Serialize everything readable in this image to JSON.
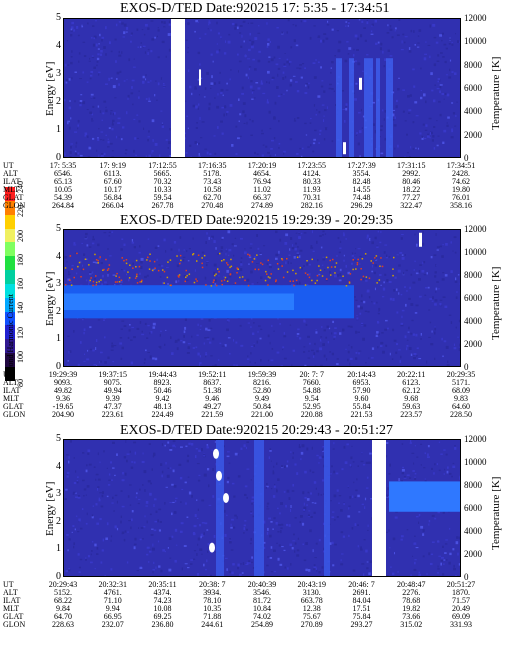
{
  "chart_data": [
    {
      "type": "heatmap",
      "title": "EXOS-D/TED   Date:920215  17: 5:35 - 17:34:51",
      "ylabel": "Energy [eV]",
      "y2label": "Temperature [K]",
      "ylim": [
        0,
        5
      ],
      "y2lim": [
        0,
        12000
      ],
      "yticks": [
        "0",
        "1",
        "2",
        "3",
        "4",
        "5"
      ],
      "y2ticks": [
        "0",
        "2000",
        "4000",
        "6000",
        "8000",
        "10000",
        "12000"
      ],
      "ephemeris": {
        "labels": [
          "UT",
          "ALT",
          "ILAT",
          "MLT",
          "GLAT",
          "GLON"
        ],
        "columns": [
          [
            "17: 5:35",
            "6546.",
            "65.13",
            "10.05",
            "54.39",
            "264.84"
          ],
          [
            "17: 9:19",
            "6113.",
            "67.60",
            "10.17",
            "56.84",
            "266.04"
          ],
          [
            "17:12:55",
            "5665.",
            "70.32",
            "10.33",
            "59.54",
            "267.78"
          ],
          [
            "17:16:35",
            "5178.",
            "73.43",
            "10.58",
            "62.70",
            "270.48"
          ],
          [
            "17:20:19",
            "4654.",
            "76.94",
            "11.02",
            "66.37",
            "274.89"
          ],
          [
            "17:23:55",
            "4124.",
            "80.33",
            "11.93",
            "70.31",
            "282.16"
          ],
          [
            "17:27:39",
            "3554.",
            "82.48",
            "14.55",
            "74.48",
            "296.29"
          ],
          [
            "17:31:15",
            "2992.",
            "80.46",
            "18.22",
            "77.27",
            "322.47"
          ],
          [
            "17:34:51",
            "2428.",
            "74.62",
            "19.80",
            "76.01",
            "358.16"
          ]
        ]
      }
    },
    {
      "type": "heatmap",
      "title": "EXOS-D/TED   Date:920215  19:29:39 - 20:29:35",
      "ylabel": "Energy [eV]",
      "y2label": "Temperature [K]",
      "ylim": [
        0,
        5
      ],
      "y2lim": [
        0,
        12000
      ],
      "yticks": [
        "0",
        "1",
        "2",
        "3",
        "4",
        "5"
      ],
      "y2ticks": [
        "0",
        "2000",
        "4000",
        "6000",
        "8000",
        "10000",
        "12000"
      ],
      "ephemeris": {
        "labels": [
          "UT",
          "ALT",
          "ILAT",
          "MLT",
          "GLAT",
          "GLON"
        ],
        "columns": [
          [
            "19:29:39",
            "9093.",
            "49.82",
            "9.36",
            "-19.65",
            "204.90"
          ],
          [
            "19:37:15",
            "9075.",
            "49.94",
            "9.39",
            "47.37",
            "223.61"
          ],
          [
            "19:44:43",
            "8923.",
            "50.46",
            "9.42",
            "48.13",
            "224.49"
          ],
          [
            "19:52:11",
            "8637.",
            "51.38",
            "9.46",
            "49.27",
            "221.59"
          ],
          [
            "19:59:39",
            "8216.",
            "52.80",
            "9.49",
            "50.84",
            "221.00"
          ],
          [
            "20: 7: 7",
            "7660.",
            "54.88",
            "9.54",
            "52.95",
            "220.88"
          ],
          [
            "20:14:43",
            "6953.",
            "57.90",
            "9.60",
            "55.84",
            "221.53"
          ],
          [
            "20:22:11",
            "6123.",
            "62.12",
            "9.68",
            "59.63",
            "223.57"
          ],
          [
            "20:29:35",
            "5171.",
            "68.09",
            "9.83",
            "64.60",
            "228.50"
          ]
        ]
      }
    },
    {
      "type": "heatmap",
      "title": "EXOS-D/TED   Date:920215  20:29:43 - 20:51:27",
      "ylabel": "Energy [eV]",
      "y2label": "Temperature [K]",
      "ylim": [
        0,
        5
      ],
      "y2lim": [
        0,
        12000
      ],
      "yticks": [
        "0",
        "1",
        "2",
        "3",
        "4",
        "5"
      ],
      "y2ticks": [
        "0",
        "2000",
        "4000",
        "6000",
        "8000",
        "10000",
        "12000"
      ],
      "ephemeris": {
        "labels": [
          "UT",
          "ALT",
          "ILAT",
          "MLT",
          "GLAT",
          "GLON"
        ],
        "columns": [
          [
            "20:29:43",
            "5152.",
            "68.22",
            "9.84",
            "64.70",
            "228.63"
          ],
          [
            "20:32:31",
            "4761.",
            "71.10",
            "9.94",
            "66.95",
            "232.07"
          ],
          [
            "20:35:11",
            "4374.",
            "74.23",
            "10.08",
            "69.25",
            "236.80"
          ],
          [
            "20:38: 7",
            "3934.",
            "78.10",
            "10.35",
            "71.88",
            "244.61"
          ],
          [
            "20:40:39",
            "3546.",
            "81.72",
            "10.84",
            "74.02",
            "254.89"
          ],
          [
            "20:43:19",
            "3130.",
            "663.78",
            "12.38",
            "75.67",
            "270.89"
          ],
          [
            "20:46: 7",
            "2691.",
            "84.04",
            "17.51",
            "75.84",
            "293.27"
          ],
          [
            "20:48:47",
            "2276.",
            "78.68",
            "19.82",
            "73.66",
            "315.02"
          ],
          [
            "20:51:27",
            "1870.",
            "71.57",
            "20.49",
            "69.09",
            "331.93"
          ]
        ]
      }
    }
  ],
  "colorbar": {
    "label": "Second Harmonic Current",
    "ticks": [
      "80",
      "100",
      "120",
      "140",
      "160",
      "180",
      "200",
      "220",
      "240"
    ]
  },
  "colors": {
    "background": "#3030b0",
    "band": "#1a5cf0",
    "band_core": "#2a7cff",
    "gap": "#ffffff"
  }
}
